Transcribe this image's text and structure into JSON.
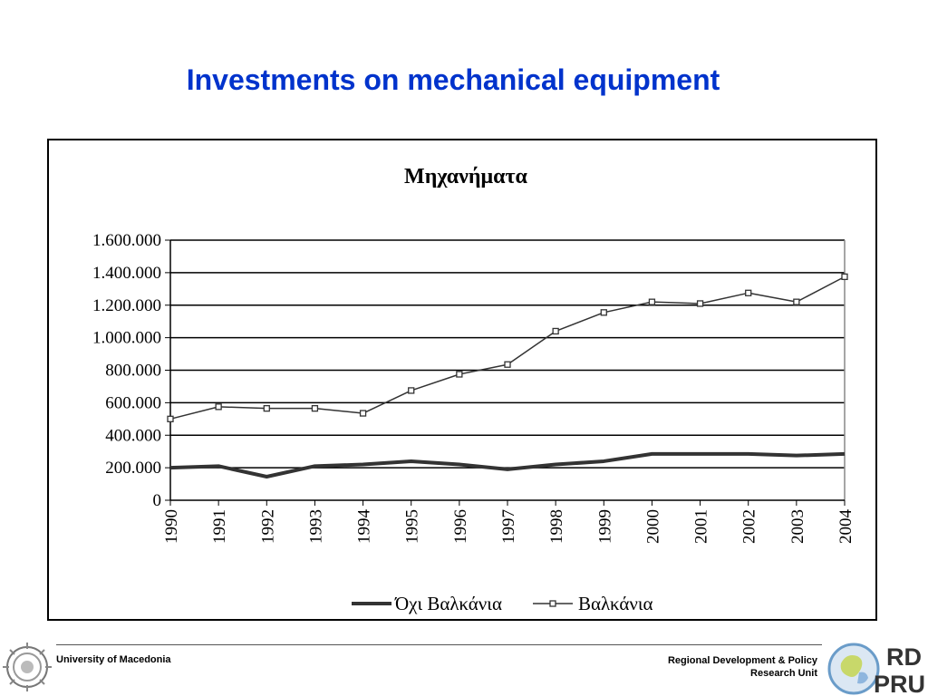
{
  "slide": {
    "title": "Investments on mechanical equipment"
  },
  "footer": {
    "left_text": "University of Macedonia",
    "right_line1": "Regional Development & Policy",
    "right_line2": "Research Unit",
    "logo_right_text_top": "RD",
    "logo_right_text_bottom": "PRU"
  },
  "chart_data": {
    "type": "line",
    "title": "Μηχανήματα",
    "xlabel": "",
    "ylabel": "",
    "x": [
      "1990",
      "1991",
      "1992",
      "1993",
      "1994",
      "1995",
      "1996",
      "1997",
      "1998",
      "1999",
      "2000",
      "2001",
      "2002",
      "2003",
      "2004"
    ],
    "ylim": [
      0,
      1600000
    ],
    "yticks": [
      0,
      200000,
      400000,
      600000,
      800000,
      1000000,
      1200000,
      1400000,
      1600000
    ],
    "ytick_labels": [
      "0",
      "200.000",
      "400.000",
      "600.000",
      "800.000",
      "1.000.000",
      "1.200.000",
      "1.400.000",
      "1.600.000"
    ],
    "grid": true,
    "legend_position": "bottom",
    "series": [
      {
        "name": "Όχι Βαλκάνια",
        "color": "#333333",
        "marker": "none",
        "values": [
          200000,
          210000,
          145000,
          210000,
          220000,
          240000,
          220000,
          190000,
          220000,
          240000,
          285000,
          285000,
          285000,
          275000,
          285000
        ]
      },
      {
        "name": "Βαλκάνια",
        "color": "#333333",
        "marker": "square",
        "values": [
          500000,
          575000,
          565000,
          565000,
          535000,
          675000,
          775000,
          835000,
          1040000,
          1155000,
          1220000,
          1210000,
          1275000,
          1220000,
          1375000
        ]
      }
    ]
  }
}
